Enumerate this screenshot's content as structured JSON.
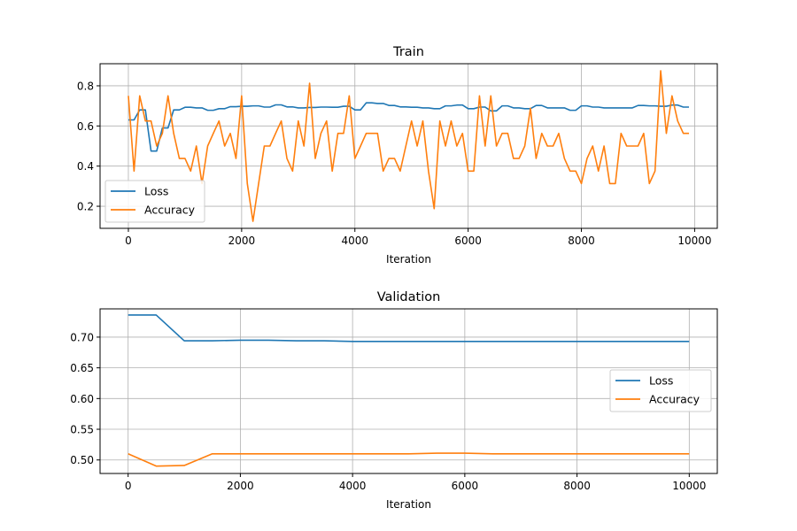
{
  "figure": {
    "colors": {
      "loss": "#1f77b4",
      "accuracy": "#ff7f0e",
      "grid": "#b0b0b0",
      "axes": "#000000"
    }
  },
  "chart_data": [
    {
      "type": "line",
      "title": "Train",
      "xlabel": "Iteration",
      "ylabel": "",
      "xlim": [
        -500,
        10400
      ],
      "ylim": [
        0.09,
        0.91
      ],
      "xticks": [
        0,
        2000,
        4000,
        6000,
        8000,
        10000
      ],
      "yticks": [
        0.2,
        0.4,
        0.6,
        0.8
      ],
      "ytick_labels": [
        "0.2",
        "0.4",
        "0.6",
        "0.8"
      ],
      "grid": true,
      "legend_position": "lower-left",
      "series": [
        {
          "name": "Loss",
          "color": "#1f77b4",
          "x": [
            0,
            100,
            200,
            300,
            400,
            500,
            600,
            700,
            800,
            900,
            1000,
            1100,
            1200,
            1300,
            1400,
            1500,
            1600,
            1700,
            1800,
            1900,
            2000,
            2100,
            2200,
            2300,
            2400,
            2500,
            2600,
            2700,
            2800,
            2900,
            3000,
            3100,
            3200,
            3300,
            3400,
            3500,
            3600,
            3700,
            3800,
            3900,
            4000,
            4100,
            4200,
            4300,
            4400,
            4500,
            4600,
            4700,
            4800,
            4900,
            5000,
            5100,
            5200,
            5300,
            5400,
            5500,
            5600,
            5700,
            5800,
            5900,
            6000,
            6100,
            6200,
            6300,
            6400,
            6500,
            6600,
            6700,
            6800,
            6900,
            7000,
            7100,
            7200,
            7300,
            7400,
            7500,
            7600,
            7700,
            7800,
            7900,
            8000,
            8100,
            8200,
            8300,
            8400,
            8500,
            8600,
            8700,
            8800,
            8900,
            9000,
            9100,
            9200,
            9300,
            9400,
            9500,
            9600,
            9700,
            9800,
            9900
          ],
          "y": [
            0.63,
            0.63,
            0.68,
            0.68,
            0.475,
            0.475,
            0.59,
            0.59,
            0.68,
            0.68,
            0.693,
            0.693,
            0.69,
            0.69,
            0.678,
            0.678,
            0.686,
            0.686,
            0.696,
            0.696,
            0.698,
            0.698,
            0.7,
            0.7,
            0.694,
            0.694,
            0.705,
            0.705,
            0.695,
            0.695,
            0.69,
            0.69,
            0.692,
            0.692,
            0.694,
            0.694,
            0.693,
            0.693,
            0.698,
            0.698,
            0.68,
            0.68,
            0.715,
            0.715,
            0.712,
            0.712,
            0.702,
            0.702,
            0.695,
            0.695,
            0.693,
            0.693,
            0.69,
            0.69,
            0.686,
            0.686,
            0.7,
            0.7,
            0.704,
            0.704,
            0.686,
            0.686,
            0.694,
            0.694,
            0.675,
            0.675,
            0.7,
            0.7,
            0.69,
            0.69,
            0.686,
            0.686,
            0.702,
            0.702,
            0.69,
            0.69,
            0.69,
            0.69,
            0.678,
            0.678,
            0.7,
            0.7,
            0.694,
            0.694,
            0.69,
            0.69,
            0.69,
            0.69,
            0.69,
            0.69,
            0.702,
            0.702,
            0.7,
            0.7,
            0.698,
            0.698,
            0.704,
            0.704,
            0.694,
            0.694
          ]
        },
        {
          "name": "Accuracy",
          "color": "#ff7f0e",
          "x": [
            0,
            100,
            200,
            300,
            400,
            500,
            600,
            700,
            800,
            900,
            1000,
            1100,
            1200,
            1300,
            1400,
            1500,
            1600,
            1700,
            1800,
            1900,
            2000,
            2100,
            2200,
            2300,
            2400,
            2500,
            2600,
            2700,
            2800,
            2900,
            3000,
            3100,
            3200,
            3300,
            3400,
            3500,
            3600,
            3700,
            3800,
            3900,
            4000,
            4100,
            4200,
            4300,
            4400,
            4500,
            4600,
            4700,
            4800,
            4900,
            5000,
            5100,
            5200,
            5300,
            5400,
            5500,
            5600,
            5700,
            5800,
            5900,
            6000,
            6100,
            6200,
            6300,
            6400,
            6500,
            6600,
            6700,
            6800,
            6900,
            7000,
            7100,
            7200,
            7300,
            7400,
            7500,
            7600,
            7700,
            7800,
            7900,
            8000,
            8100,
            8200,
            8300,
            8400,
            8500,
            8600,
            8700,
            8800,
            8900,
            9000,
            9100,
            9200,
            9300,
            9400,
            9500,
            9600,
            9700,
            9800,
            9900
          ],
          "y": [
            0.75,
            0.375,
            0.75,
            0.625,
            0.625,
            0.5,
            0.563,
            0.75,
            0.563,
            0.438,
            0.438,
            0.375,
            0.5,
            0.313,
            0.5,
            0.563,
            0.625,
            0.5,
            0.563,
            0.438,
            0.75,
            0.313,
            0.125,
            0.313,
            0.5,
            0.5,
            0.563,
            0.625,
            0.438,
            0.375,
            0.625,
            0.5,
            0.813,
            0.438,
            0.563,
            0.625,
            0.375,
            0.563,
            0.563,
            0.75,
            0.438,
            0.5,
            0.563,
            0.563,
            0.563,
            0.375,
            0.438,
            0.438,
            0.375,
            0.5,
            0.625,
            0.5,
            0.625,
            0.375,
            0.188,
            0.625,
            0.5,
            0.625,
            0.5,
            0.563,
            0.375,
            0.375,
            0.75,
            0.5,
            0.75,
            0.5,
            0.563,
            0.563,
            0.438,
            0.438,
            0.5,
            0.688,
            0.438,
            0.563,
            0.5,
            0.5,
            0.563,
            0.438,
            0.375,
            0.375,
            0.313,
            0.438,
            0.5,
            0.375,
            0.5,
            0.313,
            0.313,
            0.563,
            0.5,
            0.5,
            0.5,
            0.563,
            0.313,
            0.375,
            0.875,
            0.563,
            0.75,
            0.625,
            0.563,
            0.563
          ]
        }
      ]
    },
    {
      "type": "line",
      "title": "Validation",
      "xlabel": "Iteration",
      "ylabel": "",
      "xlim": [
        -500,
        10500
      ],
      "ylim": [
        0.478,
        0.746
      ],
      "xticks": [
        0,
        2000,
        4000,
        6000,
        8000,
        10000
      ],
      "yticks": [
        0.5,
        0.55,
        0.6,
        0.65,
        0.7
      ],
      "ytick_labels": [
        "0.50",
        "0.55",
        "0.60",
        "0.65",
        "0.70"
      ],
      "grid": true,
      "legend_position": "center-right",
      "series": [
        {
          "name": "Loss",
          "color": "#1f77b4",
          "x": [
            0,
            500,
            1000,
            1500,
            2000,
            2500,
            3000,
            3500,
            4000,
            4500,
            5000,
            5500,
            6000,
            6500,
            7000,
            7500,
            8000,
            8500,
            9000,
            9500,
            10000
          ],
          "y": [
            0.736,
            0.736,
            0.694,
            0.694,
            0.695,
            0.695,
            0.694,
            0.694,
            0.693,
            0.693,
            0.693,
            0.693,
            0.693,
            0.693,
            0.693,
            0.693,
            0.693,
            0.693,
            0.693,
            0.693,
            0.693
          ]
        },
        {
          "name": "Accuracy",
          "color": "#ff7f0e",
          "x": [
            0,
            500,
            1000,
            1500,
            2000,
            2500,
            3000,
            3500,
            4000,
            4500,
            5000,
            5500,
            6000,
            6500,
            7000,
            7500,
            8000,
            8500,
            9000,
            9500,
            10000
          ],
          "y": [
            0.51,
            0.49,
            0.491,
            0.51,
            0.51,
            0.51,
            0.51,
            0.51,
            0.51,
            0.51,
            0.51,
            0.511,
            0.511,
            0.51,
            0.51,
            0.51,
            0.51,
            0.51,
            0.51,
            0.51,
            0.51
          ]
        }
      ]
    }
  ]
}
